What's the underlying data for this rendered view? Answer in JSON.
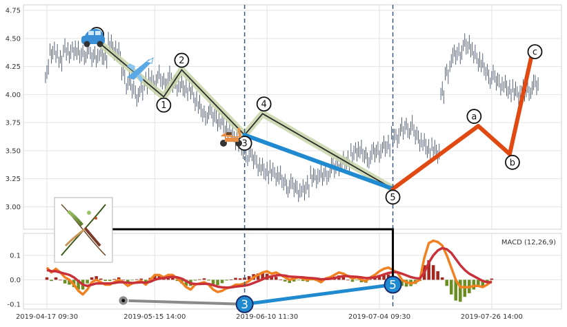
{
  "chart_data": [
    {
      "type": "line",
      "panel": "price",
      "title": "",
      "xlabel": "",
      "ylabel": "",
      "ylim": [
        2.8,
        4.8
      ],
      "y_ticks": [
        "3.00",
        "3.25",
        "3.50",
        "3.75",
        "4.00",
        "4.25",
        "4.50",
        "4.75"
      ],
      "grid": true,
      "series": [
        {
          "style": "ohlc-bars",
          "color": "#2b3a55",
          "values": [
            4.2,
            4.36,
            4.39,
            4.3,
            4.42,
            4.35,
            4.4,
            4.36,
            4.37,
            4.38,
            4.33,
            4.35,
            4.36,
            4.35,
            4.44,
            4.4,
            4.35,
            4.2,
            4.1,
            4.05,
            4.0,
            4.04,
            4.12,
            4.12,
            4.1,
            4.15,
            4.12,
            4.14,
            4.1,
            4.09,
            4.08,
            4.06,
            4.03,
            3.95,
            3.88,
            3.83,
            3.84,
            3.8,
            3.78,
            3.75,
            3.7,
            3.65,
            3.6,
            3.54,
            3.5,
            3.46,
            3.42,
            3.38,
            3.34,
            3.32,
            3.3,
            3.28,
            3.25,
            3.22,
            3.18,
            3.17,
            3.15,
            3.15,
            3.2,
            3.25,
            3.26,
            3.27,
            3.3,
            3.32,
            3.34,
            3.38,
            3.4,
            3.42,
            3.45,
            3.5,
            3.48,
            3.46,
            3.44,
            3.48,
            3.5,
            3.54,
            3.56,
            3.6,
            3.62,
            3.68,
            3.72,
            3.7,
            3.64,
            3.6,
            3.56,
            3.52,
            3.5,
            3.48,
            4.0,
            4.2,
            4.3,
            4.35,
            4.38,
            4.45,
            4.45,
            4.35,
            4.3,
            4.25,
            4.2,
            4.15,
            4.12,
            4.1,
            4.08,
            4.05,
            4.02,
            4.0,
            4.02,
            4.05,
            4.06,
            4.08
          ]
        },
        {
          "name": "",
          "style": "wave-1-5",
          "color": "#2b2b2b",
          "labels": [
            "0",
            "1",
            "2",
            "3",
            "4",
            "5"
          ],
          "values": [
            4.45,
            3.98,
            4.22,
            3.64,
            3.83,
            3.16
          ]
        },
        {
          "name": "",
          "style": "wave-3-5",
          "color": "#1f8ad0",
          "labels": [
            "3",
            "5"
          ],
          "values": [
            3.64,
            3.16
          ]
        },
        {
          "name": "",
          "style": "wave-abc",
          "color": "#e04a12",
          "labels": [
            "5",
            "a",
            "b",
            "c"
          ],
          "values": [
            3.16,
            3.72,
            3.47,
            4.37
          ]
        }
      ],
      "annotations": [
        {
          "label": "0",
          "y": 4.45,
          "icon": "car-icon"
        },
        {
          "label": "1",
          "y": 3.98
        },
        {
          "label": "2",
          "y": 4.22,
          "icon": "airplane-icon"
        },
        {
          "label": "3",
          "y": 3.64
        },
        {
          "label": "4",
          "y": 3.83
        },
        {
          "label": "5",
          "y": 3.16,
          "icon": "scooter-icon"
        },
        {
          "label": "a",
          "y": 3.72
        },
        {
          "label": "b",
          "y": 3.47
        },
        {
          "label": "c",
          "y": 4.37
        }
      ]
    },
    {
      "type": "bar",
      "panel": "macd",
      "legend": "MACD (12,26,9)",
      "ylim": [
        -0.12,
        0.19
      ],
      "y_ticks": [
        "-0.1",
        "0.0",
        "0.1"
      ],
      "x_ticks": [
        "2019-04-17 09:30",
        "2019-05-15 14:00",
        "2019-06-10 11:30",
        "2019-07-04 09:30",
        "2019-07-26 14:00"
      ],
      "grid": true,
      "colors": {
        "positive": "#a3281f",
        "negative": "#6b8e23",
        "macd": "#f08020",
        "signal": "#c8303a"
      },
      "macd": [
        0.05,
        0.03,
        0.045,
        0.03,
        0.01,
        0.0,
        -0.02,
        -0.045,
        -0.06,
        -0.04,
        -0.01,
        0.0,
        -0.01,
        -0.02,
        -0.02,
        -0.01,
        0.0,
        -0.01,
        -0.025,
        -0.015,
        -0.01,
        -0.005,
        -0.02,
        0.0,
        0.02,
        0.02,
        0.01,
        0.02,
        0.02,
        0.005,
        -0.01,
        -0.03,
        -0.04,
        -0.02,
        -0.015,
        -0.01,
        -0.02,
        -0.04,
        -0.05,
        -0.045,
        -0.035,
        -0.03,
        -0.02,
        -0.02,
        -0.015,
        -0.005,
        0.01,
        0.02,
        0.03,
        0.035,
        0.025,
        0.03,
        0.02,
        0.01,
        0.0,
        0.005,
        0.01,
        0.005,
        0.0,
        0.005,
        0.0,
        -0.01,
        0.005,
        0.01,
        0.02,
        0.03,
        0.025,
        0.015,
        0.005,
        0.01,
        0.0,
        -0.005,
        0.01,
        0.02,
        0.035,
        0.045,
        0.05,
        0.04,
        0.03,
        0.0,
        -0.01,
        -0.015,
        -0.01,
        0.0,
        0.09,
        0.15,
        0.16,
        0.155,
        0.14,
        0.1,
        0.05,
        0.0,
        -0.03,
        -0.03,
        -0.03,
        -0.025,
        -0.025,
        -0.03,
        -0.02,
        -0.005
      ],
      "signal": [
        0.04,
        0.035,
        0.035,
        0.03,
        0.025,
        0.02,
        0.01,
        -0.005,
        -0.02,
        -0.025,
        -0.02,
        -0.015,
        -0.015,
        -0.015,
        -0.015,
        -0.013,
        -0.01,
        -0.01,
        -0.012,
        -0.013,
        -0.012,
        -0.01,
        -0.012,
        -0.008,
        0.0,
        0.005,
        0.007,
        0.01,
        0.012,
        0.01,
        0.005,
        -0.005,
        -0.015,
        -0.017,
        -0.017,
        -0.016,
        -0.017,
        -0.022,
        -0.028,
        -0.031,
        -0.032,
        -0.031,
        -0.028,
        -0.026,
        -0.024,
        -0.02,
        -0.013,
        -0.006,
        0.002,
        0.01,
        0.014,
        0.018,
        0.019,
        0.017,
        0.013,
        0.012,
        0.011,
        0.01,
        0.008,
        0.007,
        0.005,
        0.002,
        0.003,
        0.004,
        0.007,
        0.012,
        0.015,
        0.015,
        0.013,
        0.012,
        0.01,
        0.007,
        0.008,
        0.01,
        0.015,
        0.022,
        0.028,
        0.031,
        0.031,
        0.025,
        0.018,
        0.011,
        0.007,
        0.005,
        0.03,
        0.07,
        0.1,
        0.12,
        0.13,
        0.125,
        0.11,
        0.085,
        0.06,
        0.04,
        0.025,
        0.015,
        0.005,
        -0.005,
        -0.01,
        -0.01
      ],
      "histogram": [
        0.01,
        -0.005,
        0.01,
        0.0,
        -0.015,
        -0.02,
        -0.03,
        -0.04,
        -0.04,
        -0.015,
        0.01,
        0.015,
        0.005,
        -0.005,
        -0.005,
        0.003,
        0.01,
        0.0,
        -0.013,
        -0.002,
        0.002,
        0.005,
        -0.008,
        0.008,
        0.02,
        0.015,
        0.003,
        0.01,
        0.008,
        -0.005,
        -0.015,
        -0.025,
        -0.025,
        -0.003,
        0.002,
        0.006,
        -0.003,
        -0.018,
        -0.022,
        -0.014,
        -0.003,
        0.001,
        0.008,
        0.006,
        0.009,
        0.015,
        0.023,
        0.026,
        0.028,
        0.025,
        0.011,
        0.012,
        0.001,
        -0.007,
        -0.013,
        -0.007,
        -0.001,
        -0.005,
        -0.008,
        -0.002,
        -0.005,
        -0.012,
        0.002,
        0.006,
        0.013,
        0.018,
        0.01,
        0.0,
        -0.008,
        -0.002,
        -0.01,
        -0.012,
        0.002,
        0.01,
        0.02,
        0.023,
        0.022,
        0.009,
        -0.001,
        -0.025,
        -0.028,
        -0.026,
        -0.017,
        -0.005,
        0.06,
        0.08,
        0.06,
        0.035,
        0.01,
        -0.025,
        -0.06,
        -0.085,
        -0.09,
        -0.07,
        -0.055,
        -0.04,
        -0.03,
        -0.025,
        -0.01,
        0.005
      ],
      "overlay_wave": {
        "labels": [
          "",
          "3",
          "5"
        ],
        "values": [
          -0.085,
          -0.1,
          -0.02
        ],
        "colors": [
          "#8a8a8a",
          "#1f8ad0"
        ]
      }
    }
  ],
  "panel_icons": [
    "car-icon",
    "airplane-icon",
    "scooter-icon",
    "plant-thumbnail"
  ]
}
